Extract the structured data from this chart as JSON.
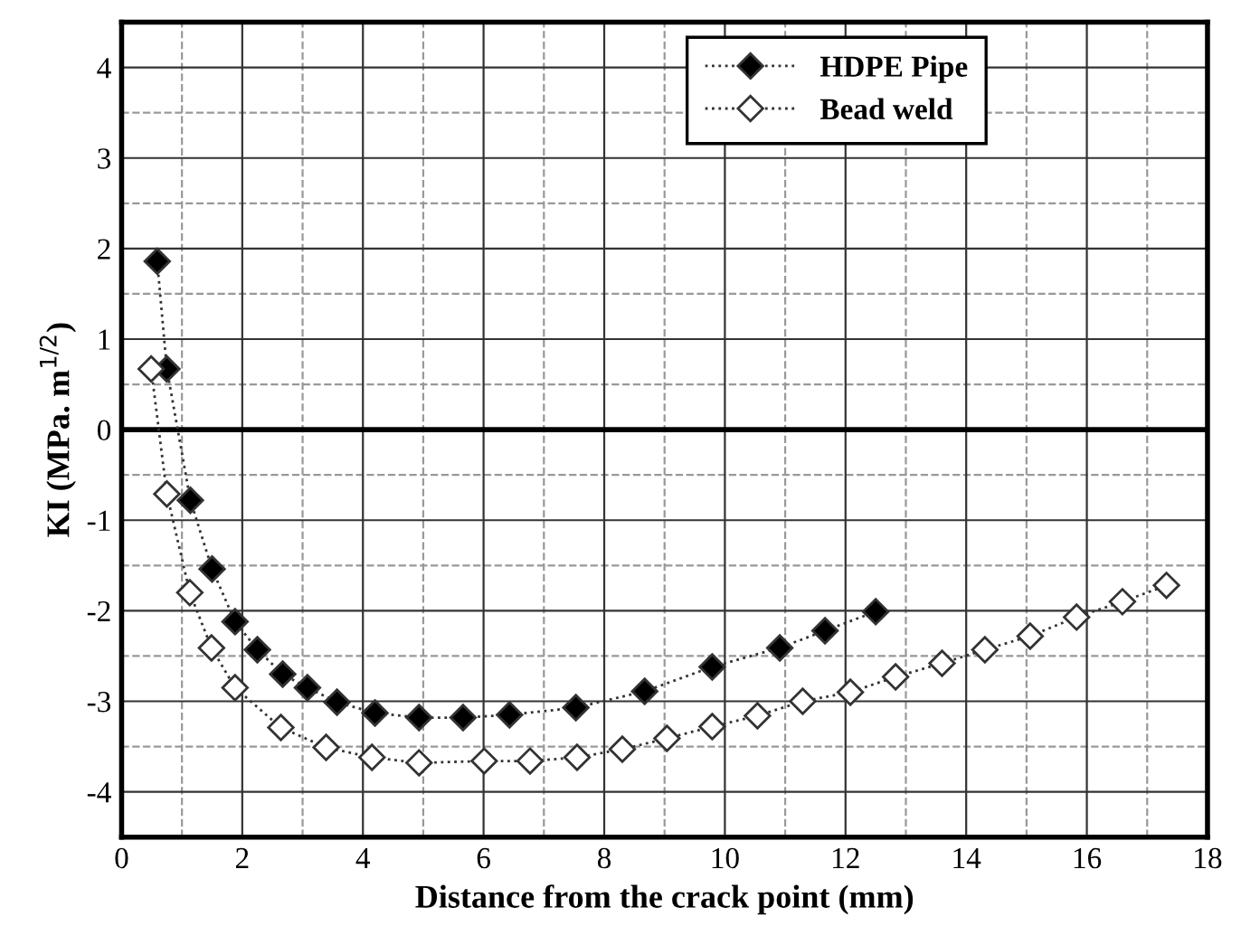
{
  "chart_data": {
    "type": "line",
    "xlabel": "Distance from the crack point (mm)",
    "ylabel": "KI (MPa. m$^{1/2}$)",
    "xlim": [
      0,
      18
    ],
    "ylim": [
      -4.5,
      4.5
    ],
    "xticks": [
      0,
      2,
      4,
      6,
      8,
      10,
      12,
      14,
      16,
      18
    ],
    "yticks": [
      -4,
      -3,
      -2,
      -1,
      0,
      1,
      2,
      3,
      4
    ],
    "grid": true,
    "legend": "top right",
    "line_style": "dotted",
    "ref_lines": [
      {
        "axis": "y",
        "value": 0,
        "color": "#000000",
        "line_style": "solid"
      }
    ],
    "series": [
      {
        "name": "HDPE Pipe",
        "color": "#000000",
        "marker": "diamond",
        "x": [
          0.59,
          0.75,
          1.14,
          1.5,
          1.88,
          2.25,
          2.67,
          3.08,
          3.57,
          4.2,
          4.93,
          5.66,
          6.43,
          7.53,
          8.67,
          9.79,
          10.91,
          11.66,
          12.5
        ],
        "values": [
          1.86,
          0.67,
          -0.78,
          -1.54,
          -2.12,
          -2.43,
          -2.7,
          -2.85,
          -3.01,
          -3.13,
          -3.18,
          -3.18,
          -3.15,
          -3.07,
          -2.89,
          -2.62,
          -2.41,
          -2.22,
          -2.01
        ]
      },
      {
        "name": "Bead weld",
        "color": "#ffffff",
        "marker": "diamond",
        "x": [
          0.49,
          0.75,
          1.13,
          1.49,
          1.88,
          2.64,
          3.39,
          4.15,
          4.93,
          6.01,
          6.77,
          7.55,
          8.3,
          9.04,
          9.79,
          10.54,
          11.29,
          12.08,
          12.83,
          13.6,
          14.31,
          15.06,
          15.83,
          16.59,
          17.32
        ],
        "values": [
          0.67,
          -0.71,
          -1.8,
          -2.41,
          -2.85,
          -3.29,
          -3.51,
          -3.62,
          -3.68,
          -3.66,
          -3.66,
          -3.62,
          -3.53,
          -3.41,
          -3.28,
          -3.16,
          -3.0,
          -2.9,
          -2.73,
          -2.58,
          -2.43,
          -2.28,
          -2.07,
          -1.9,
          -1.72
        ]
      }
    ]
  }
}
